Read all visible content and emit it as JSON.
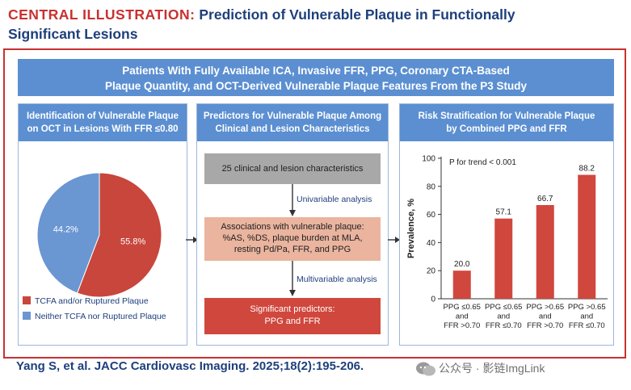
{
  "header": {
    "label": "CENTRAL ILLUSTRATION:",
    "title_line1": "Prediction of Vulnerable Plaque in Functionally",
    "title_line2": "Significant Lesions"
  },
  "banner": {
    "line1": "Patients With Fully Available ICA, Invasive FFR, PPG, Coronary CTA-Based",
    "line2": "Plaque Quantity, and OCT-Derived Vulnerable Plaque Features From the P3 Study"
  },
  "left_panel": {
    "head_line1": "Identification of Vulnerable Plaque",
    "head_line2": "on OCT in Lesions With FFR ≤0.80",
    "slices": [
      {
        "label": "55.8%",
        "value": 55.8,
        "color": "#c8463c"
      },
      {
        "label": "44.2%",
        "value": 44.2,
        "color": "#6a96d2"
      }
    ],
    "legend": [
      {
        "label": "TCFA and/or Ruptured Plaque",
        "color": "#c8463c"
      },
      {
        "label": "Neither TCFA nor Ruptured Plaque",
        "color": "#6a96d2"
      }
    ]
  },
  "middle_panel": {
    "head_line1": "Predictors for Vulnerable Plaque Among",
    "head_line2": "Clinical and Lesion Characteristics",
    "box1": "25 clinical and lesion characteristics",
    "step1": "Univariable analysis",
    "box2_line1": "Associations with vulnerable plaque:",
    "box2_line2": "%AS, %DS, plaque burden at MLA,",
    "box2_line3": "resting Pd/Pa, FFR, and PPG",
    "step2": "Multivariable analysis",
    "box3_line1": "Significant predictors:",
    "box3_line2": "PPG and FFR"
  },
  "right_panel": {
    "head_line1": "Risk Stratification for Vulnerable Plaque",
    "head_line2": "by Combined PPG and FFR"
  },
  "chart_data": {
    "type": "bar",
    "annotation": "P for trend < 0.001",
    "ylabel": "Prevalence, %",
    "ylim": [
      0,
      100
    ],
    "yticks": [
      0,
      20,
      40,
      60,
      80,
      100
    ],
    "categories": [
      [
        "PPG ≤0.65",
        "and",
        "FFR >0.70"
      ],
      [
        "PPG ≤0.65",
        "and",
        "FFR ≤0.70"
      ],
      [
        "PPG >0.65",
        "and",
        "FFR >0.70"
      ],
      [
        "PPG >0.65",
        "and",
        "FFR ≤0.70"
      ]
    ],
    "values": [
      20.0,
      57.1,
      66.7,
      88.2
    ],
    "value_labels": [
      "20.0",
      "57.1",
      "66.7",
      "88.2"
    ],
    "bar_color": "#d0473d",
    "grid": false
  },
  "citation": "Yang S, et al. JACC Cardiovasc Imaging. 2025;18(2):195-206.",
  "watermark": "公众号 · 影链ImgLink"
}
